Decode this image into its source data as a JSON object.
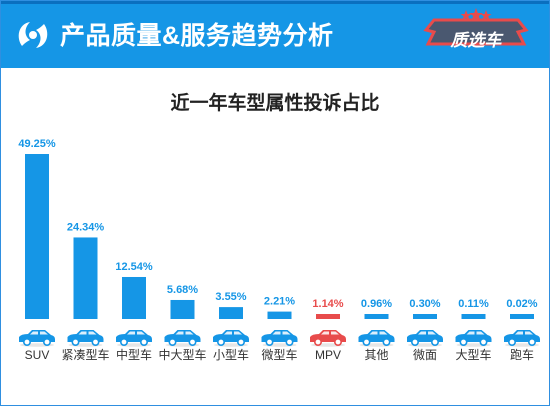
{
  "header": {
    "title": "产品质量&服务趋势分析",
    "badge": "质选车"
  },
  "colors": {
    "header_bg": "#1596e6",
    "bar": "#1596e6",
    "highlight": "#e84b4b",
    "badge_bg": "#4a5870",
    "car_blue": "#1596e6"
  },
  "chart_data": {
    "type": "bar",
    "title": "近一年车型属性投诉占比",
    "xlabel": "",
    "ylabel": "",
    "categories": [
      "SUV",
      "紧凑型车",
      "中型车",
      "中大型车",
      "小型车",
      "微型车",
      "MPV",
      "其他",
      "微面",
      "大型车",
      "跑车"
    ],
    "values": [
      49.25,
      24.34,
      12.54,
      5.68,
      3.55,
      2.21,
      1.14,
      0.96,
      0.3,
      0.11,
      0.02
    ],
    "value_labels": [
      "49.25%",
      "24.34%",
      "12.54%",
      "5.68%",
      "3.55%",
      "2.21%",
      "1.14%",
      "0.96%",
      "0.30%",
      "0.11%",
      "0.02%"
    ],
    "highlight_category": "MPV",
    "ylim": [
      0,
      49.25
    ],
    "grid": false,
    "icons": [
      "suv-car-icon",
      "compact-car-icon",
      "midsize-car-icon",
      "large-midsize-car-icon",
      "small-car-icon",
      "micro-car-icon",
      "mpv-car-icon",
      "pickup-car-icon",
      "minivan-car-icon",
      "large-car-icon",
      "sports-car-icon"
    ]
  }
}
